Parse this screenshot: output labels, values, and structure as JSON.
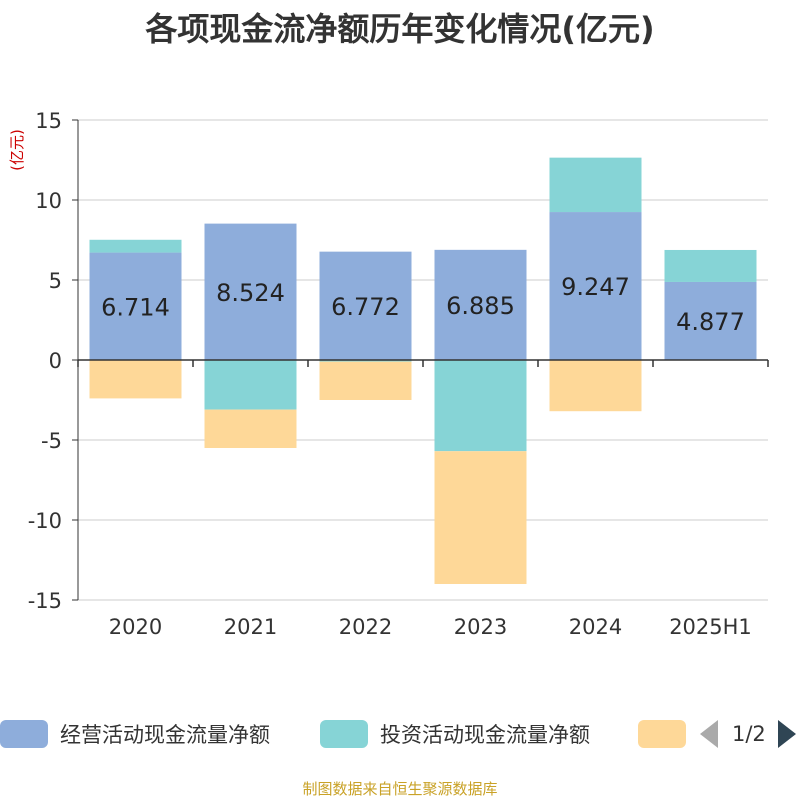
{
  "title": "各项现金流净额历年变化情况(亿元)",
  "source": "制图数据来自恒生聚源数据库",
  "pager": "1/2",
  "chart_data": {
    "type": "bar",
    "stacked": true,
    "unit_label": "(亿元)",
    "categories": [
      "2020",
      "2021",
      "2022",
      "2023",
      "2024",
      "2025H1"
    ],
    "ylim": [
      -15,
      15
    ],
    "yticks": [
      15,
      10,
      5,
      0,
      -5,
      -10,
      -15
    ],
    "grid": true,
    "legend_position": "bottom",
    "series": [
      {
        "name": "经营活动现金流量净额",
        "color": "#8eaddb",
        "values": [
          6.714,
          8.524,
          6.772,
          6.885,
          9.247,
          4.877
        ],
        "labels": [
          "6.714",
          "8.524",
          "6.772",
          "6.885",
          "9.247",
          "4.877"
        ]
      },
      {
        "name": "投资活动现金流量净额",
        "color": "#86d4d6",
        "values": [
          0.8,
          -3.1,
          -0.1,
          -5.7,
          3.4,
          2.0
        ]
      },
      {
        "name": "",
        "color": "#fed898",
        "values": [
          -2.4,
          -2.4,
          -2.4,
          -8.3,
          -3.2,
          0
        ]
      }
    ]
  }
}
